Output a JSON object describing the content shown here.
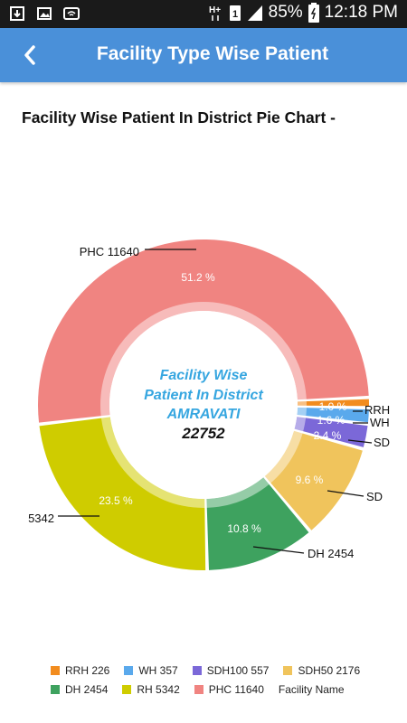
{
  "status_bar": {
    "battery": "85%",
    "time": "12:18 PM",
    "icons": [
      "download-icon",
      "image-icon",
      "wifi-icon",
      "hplus-icon",
      "sim-icon",
      "signal-icon",
      "battery-icon"
    ]
  },
  "app_bar": {
    "title": "Facility Type Wise Patient"
  },
  "page": {
    "heading": "Facility Wise Patient In District Pie Chart -"
  },
  "chart_data": {
    "type": "pie",
    "center_lines": [
      "Facility Wise",
      "Patient In District",
      "AMRAVATI"
    ],
    "center_total": "22752",
    "slices": [
      {
        "label": "RRH",
        "value": 226,
        "percent_label": "1.0 %",
        "outer_label": "RRH",
        "color": "#f28c1e"
      },
      {
        "label": "WH",
        "value": 357,
        "percent_label": "1.6 %",
        "outer_label": "WH",
        "color": "#5aa9ec"
      },
      {
        "label": "SDH100",
        "value": 557,
        "percent_label": "2.4 %",
        "outer_label": "SD",
        "color": "#7b68d8"
      },
      {
        "label": "SDH50",
        "value": 2176,
        "percent_label": "9.6 %",
        "outer_label": "SD",
        "color": "#f0c45c"
      },
      {
        "label": "DH",
        "value": 2454,
        "percent_label": "10.8 %",
        "outer_label": "DH 2454",
        "color": "#3ea25f"
      },
      {
        "label": "RH",
        "value": 5342,
        "percent_label": "23.5 %",
        "outer_label": "5342",
        "color": "#cfcc00"
      },
      {
        "label": "PHC",
        "value": 11640,
        "percent_label": "51.2 %",
        "outer_label": "PHC 11640",
        "color": "#f08481"
      }
    ],
    "legend": {
      "placement": "bottom",
      "rows": [
        [
          {
            "label": "RRH  226",
            "color": "#f28c1e"
          },
          {
            "label": "WH 357",
            "color": "#5aa9ec"
          },
          {
            "label": "SDH100 557",
            "color": "#7b68d8"
          },
          {
            "label": "SDH50 2176",
            "color": "#f0c45c"
          }
        ],
        [
          {
            "label": "DH 2454",
            "color": "#3ea25f"
          },
          {
            "label": "RH 5342",
            "color": "#cfcc00"
          },
          {
            "label": "PHC 11640",
            "color": "#f08481"
          },
          {
            "label": "Facility Name",
            "color": ""
          }
        ]
      ]
    }
  }
}
